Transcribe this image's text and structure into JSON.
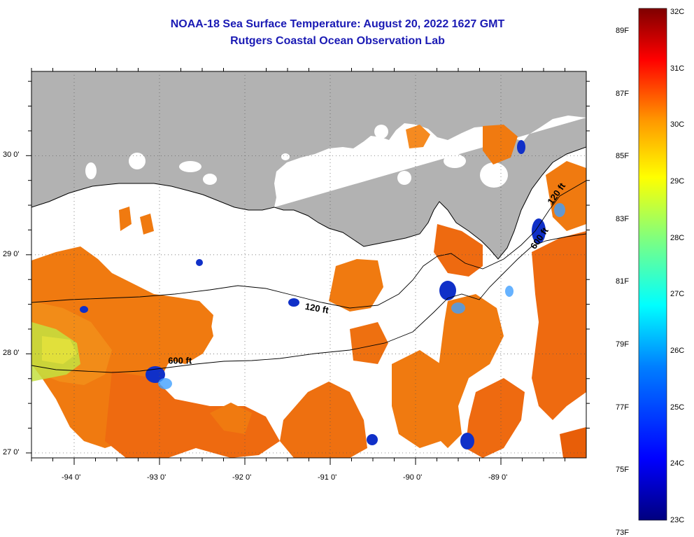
{
  "title": {
    "line1": "NOAA-18 Sea Surface Temperature:  August 20, 2022 1627 GMT",
    "line2": "Rutgers Coastal Ocean Observation Lab"
  },
  "map": {
    "lon_range": [
      -94.5,
      -88.0
    ],
    "lat_range": [
      26.95,
      30.85
    ],
    "lon_labels": [
      {
        "value": -94,
        "text": "-94 0'"
      },
      {
        "value": -93,
        "text": "-93 0'"
      },
      {
        "value": -92,
        "text": "-92 0'"
      },
      {
        "value": -91,
        "text": "-91 0'"
      },
      {
        "value": -90,
        "text": "-90 0'"
      },
      {
        "value": -89,
        "text": "-89 0'"
      }
    ],
    "lat_labels": [
      {
        "value": 30,
        "text": "30 0'"
      },
      {
        "value": 29,
        "text": "29 0'"
      },
      {
        "value": 28,
        "text": "28 0'"
      },
      {
        "value": 27,
        "text": "27 0'"
      }
    ],
    "grid": true,
    "contour_labels": [
      {
        "text": "120 ft",
        "lon": -91.3,
        "lat": 28.45
      },
      {
        "text": "600 ft",
        "lon": -92.9,
        "lat": 27.9
      },
      {
        "text": "120 ft",
        "lon": -88.4,
        "lat": 29.5
      },
      {
        "text": "600 ft",
        "lon": -88.6,
        "lat": 29.05
      }
    ],
    "colors": {
      "land": "#b2b2b2",
      "no_data": "#ffffff",
      "coast": "#000000"
    }
  },
  "colorbar": {
    "fahrenheit": [
      "89F",
      "87F",
      "85F",
      "83F",
      "81F",
      "79F",
      "77F",
      "75F",
      "73F"
    ],
    "fahrenheit_values": [
      89,
      87,
      85,
      83,
      81,
      79,
      77,
      75,
      73
    ],
    "celsius": [
      "32C",
      "31C",
      "30C",
      "29C",
      "28C",
      "27C",
      "26C",
      "25C",
      "24C",
      "23C"
    ],
    "celsius_values": [
      32,
      31,
      30,
      29,
      28,
      27,
      26,
      25,
      24,
      23
    ],
    "range_c": [
      23,
      32
    ],
    "colors": [
      "#00007f",
      "#0000ff",
      "#007fff",
      "#00ffff",
      "#7fff7f",
      "#ffff00",
      "#ff7f00",
      "#ff0000",
      "#7f0000"
    ]
  }
}
